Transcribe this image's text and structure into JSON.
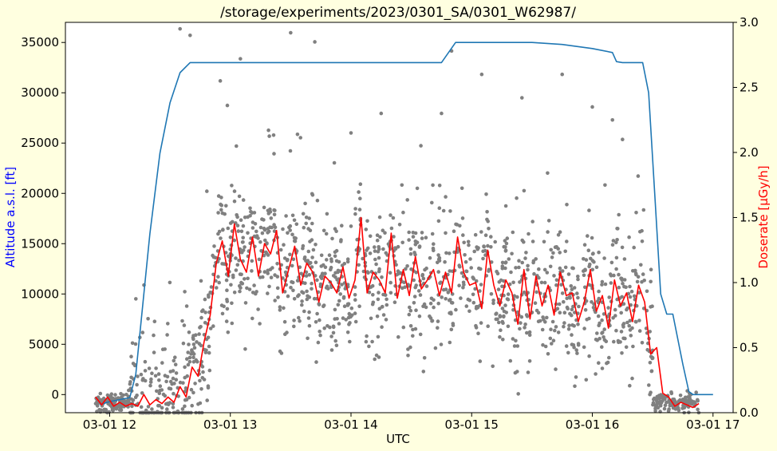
{
  "chart_data": {
    "type": "line",
    "title": "/storage/experiments/2023/0301_SA/0301_W62987/",
    "xlabel": "UTC",
    "ylabel_left": "Altitude a.s.l. [ft]",
    "ylabel_right": "Doserate [µGy/h]",
    "x_range": [
      "03-01 11:38",
      "03-01 17:10"
    ],
    "x_ticks": [
      "03-01 12",
      "03-01 13",
      "03-01 14",
      "03-01 15",
      "03-01 16",
      "03-01 17"
    ],
    "y_left_range": [
      -1800,
      37000
    ],
    "y_left_ticks": [
      "0",
      "5000",
      "10000",
      "15000",
      "20000",
      "25000",
      "30000",
      "35000"
    ],
    "y_right_range": [
      0,
      3.0
    ],
    "y_right_ticks": [
      "0.0",
      "0.5",
      "1.0",
      "1.5",
      "2.0",
      "2.5",
      "3.0"
    ],
    "grid": false,
    "series": [
      {
        "axis": "left",
        "color": "#1f77b4",
        "x": [
          "03-01 11:55",
          "03-01 12:00",
          "03-01 12:05",
          "03-01 12:10",
          "03-01 12:13",
          "03-01 12:16",
          "03-01 12:20",
          "03-01 12:25",
          "03-01 12:30",
          "03-01 12:35",
          "03-01 12:40",
          "03-01 12:45",
          "03-01 13:00",
          "03-01 13:30",
          "03-01 14:00",
          "03-01 14:30",
          "03-01 14:40",
          "03-01 14:45",
          "03-01 14:52",
          "03-01 15:00",
          "03-01 15:30",
          "03-01 15:45",
          "03-01 16:00",
          "03-01 16:10",
          "03-01 16:12",
          "03-01 16:15",
          "03-01 16:20",
          "03-01 16:25",
          "03-01 16:28",
          "03-01 16:31",
          "03-01 16:34",
          "03-01 16:37",
          "03-01 16:40",
          "03-01 16:45",
          "03-01 16:48",
          "03-01 16:50",
          "03-01 16:55",
          "03-01 17:00"
        ],
        "values": [
          -1000,
          -700,
          -500,
          -300,
          2000,
          8000,
          16000,
          24000,
          29000,
          32000,
          33000,
          33000,
          33000,
          33000,
          33000,
          33000,
          33000,
          33000,
          35000,
          35000,
          35000,
          34800,
          34400,
          34000,
          33100,
          33000,
          33000,
          33000,
          30000,
          20000,
          10000,
          8000,
          8000,
          3000,
          300,
          0,
          0,
          0
        ]
      },
      {
        "axis": "right",
        "color": "#ff0000",
        "x": [
          "03-01 11:53",
          "03-01 11:56",
          "03-01 11:59",
          "03-01 12:02",
          "03-01 12:05",
          "03-01 12:08",
          "03-01 12:11",
          "03-01 12:14",
          "03-01 12:17",
          "03-01 12:20",
          "03-01 12:23",
          "03-01 12:26",
          "03-01 12:29",
          "03-01 12:32",
          "03-01 12:35",
          "03-01 12:38",
          "03-01 12:41",
          "03-01 12:44",
          "03-01 12:47",
          "03-01 12:50",
          "03-01 12:53",
          "03-01 12:56",
          "03-01 12:59",
          "03-01 13:02",
          "03-01 13:05",
          "03-01 13:08",
          "03-01 13:11",
          "03-01 13:14",
          "03-01 13:17",
          "03-01 13:20",
          "03-01 13:23",
          "03-01 13:26",
          "03-01 13:29",
          "03-01 13:32",
          "03-01 13:35",
          "03-01 13:38",
          "03-01 13:41",
          "03-01 13:44",
          "03-01 13:47",
          "03-01 13:50",
          "03-01 13:53",
          "03-01 13:56",
          "03-01 13:59",
          "03-01 14:02",
          "03-01 14:05",
          "03-01 14:08",
          "03-01 14:11",
          "03-01 14:14",
          "03-01 14:17",
          "03-01 14:20",
          "03-01 14:23",
          "03-01 14:26",
          "03-01 14:29",
          "03-01 14:32",
          "03-01 14:35",
          "03-01 14:38",
          "03-01 14:41",
          "03-01 14:44",
          "03-01 14:47",
          "03-01 14:50",
          "03-01 14:53",
          "03-01 14:56",
          "03-01 14:59",
          "03-01 15:02",
          "03-01 15:05",
          "03-01 15:08",
          "03-01 15:11",
          "03-01 15:14",
          "03-01 15:17",
          "03-01 15:20",
          "03-01 15:23",
          "03-01 15:26",
          "03-01 15:29",
          "03-01 15:32",
          "03-01 15:35",
          "03-01 15:38",
          "03-01 15:41",
          "03-01 15:44",
          "03-01 15:47",
          "03-01 15:50",
          "03-01 15:53",
          "03-01 15:56",
          "03-01 15:59",
          "03-01 16:02",
          "03-01 16:05",
          "03-01 16:08",
          "03-01 16:11",
          "03-01 16:14",
          "03-01 16:17",
          "03-01 16:20",
          "03-01 16:23",
          "03-01 16:26",
          "03-01 16:29",
          "03-01 16:32",
          "03-01 16:35",
          "03-01 16:38",
          "03-01 16:41",
          "03-01 16:44",
          "03-01 16:47",
          "03-01 16:50",
          "03-01 16:53"
        ],
        "values": [
          0.12,
          0.06,
          0.12,
          0.05,
          0.08,
          0.05,
          0.07,
          0.05,
          0.14,
          0.06,
          0.1,
          0.07,
          0.12,
          0.08,
          0.2,
          0.12,
          0.35,
          0.28,
          0.55,
          0.75,
          1.15,
          1.32,
          1.05,
          1.45,
          1.18,
          1.08,
          1.35,
          1.05,
          1.3,
          1.22,
          1.4,
          0.92,
          1.1,
          1.28,
          0.98,
          1.15,
          1.08,
          0.85,
          1.05,
          1.0,
          0.92,
          1.12,
          0.88,
          1.02,
          1.5,
          0.92,
          1.08,
          1.02,
          0.92,
          1.38,
          0.88,
          1.1,
          0.9,
          1.2,
          0.95,
          1.02,
          1.1,
          0.9,
          1.08,
          0.92,
          1.35,
          1.08,
          0.98,
          1.0,
          0.8,
          1.25,
          0.98,
          0.82,
          1.02,
          0.92,
          0.68,
          1.1,
          0.72,
          1.05,
          0.82,
          0.98,
          0.75,
          1.08,
          0.9,
          0.92,
          0.7,
          0.85,
          1.1,
          0.78,
          0.9,
          0.65,
          1.02,
          0.82,
          0.92,
          0.7,
          0.98,
          0.85,
          0.45,
          0.5,
          0.15,
          0.12,
          0.05,
          0.08,
          0.06,
          0.04,
          0.07
        ]
      }
    ],
    "scatter": {
      "axis": "right",
      "color": "#808080",
      "x_range": [
        "03-01 11:53",
        "03-01 16:53"
      ],
      "approximate_density": "about 1700 points; about 0.0-0.2 µGy/h before 12:10 and after 16:30, otherwise mostly 0.3-1.3 µGy/h with outliers up to about 3.0",
      "x": [
        "03-01 12:35",
        "03-01 12:40",
        "03-01 12:55",
        "03-01 13:05",
        "03-01 13:30",
        "03-01 13:42",
        "03-01 14:00",
        "03-01 14:15",
        "03-01 14:45",
        "03-01 14:50",
        "03-01 15:05",
        "03-01 15:25",
        "03-01 15:45",
        "03-01 16:00",
        "03-01 16:10",
        "03-01 16:15"
      ],
      "values": [
        2.95,
        2.9,
        2.55,
        2.72,
        2.92,
        2.85,
        2.15,
        2.3,
        2.3,
        2.78,
        2.6,
        2.42,
        2.6,
        2.35,
        2.25,
        2.1
      ]
    }
  }
}
